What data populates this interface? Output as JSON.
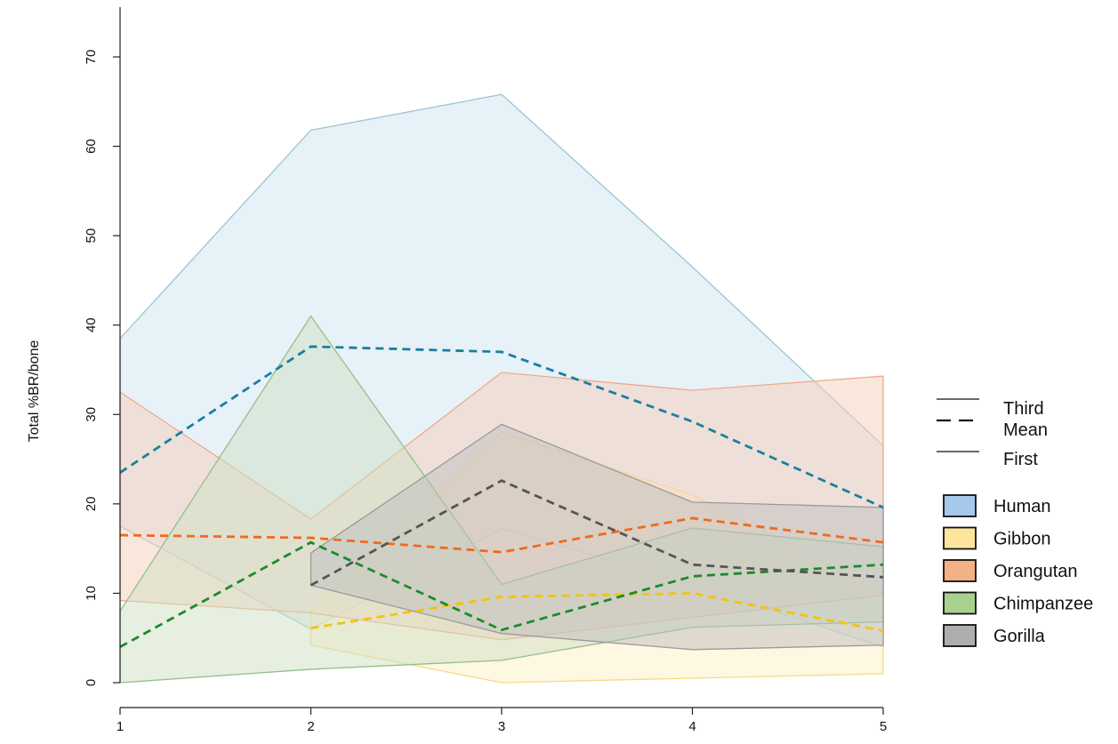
{
  "chart_data": {
    "type": "area",
    "ylabel": "Total %BR/bone",
    "xlabel": "",
    "x": [
      1,
      2,
      3,
      4,
      5
    ],
    "xlim": [
      1,
      5
    ],
    "ylim": [
      0,
      70
    ],
    "yticks": [
      0,
      10,
      20,
      30,
      40,
      50,
      60,
      70
    ],
    "grid": false,
    "legend": {
      "placement": "right",
      "line_entries": [
        {
          "label": "Third",
          "style": "solid"
        },
        {
          "label": "Mean",
          "style": "dashed"
        },
        {
          "label": "First",
          "style": "solid"
        }
      ]
    },
    "series": [
      {
        "name": "Human",
        "swatch": "#a6c8ea",
        "fill": "#cfe3f1",
        "band_stroke": "#9cc5d3",
        "mean_color": "#1a7fa0",
        "third": [
          38.5,
          61.8,
          65.8,
          46.5,
          26.5
        ],
        "mean": [
          23.5,
          37.6,
          37.0,
          29.2,
          19.6
        ],
        "first": [
          17.5,
          6.0,
          17.2,
          11.0,
          4.0
        ]
      },
      {
        "name": "Gibbon",
        "swatch": "#fde69c",
        "fill": "#fdf0c6",
        "band_stroke": "#f5dc86",
        "mean_color": "#f1c40f",
        "third": [
          null,
          8.0,
          28.0,
          21.0,
          10.0
        ],
        "mean": [
          null,
          6.1,
          9.6,
          10.0,
          5.8
        ],
        "first": [
          null,
          4.2,
          0.0,
          0.5,
          1.0
        ]
      },
      {
        "name": "Orangutan",
        "swatch": "#f4b184",
        "fill": "#f6cfb9",
        "band_stroke": "#f0a98a",
        "mean_color": "#f06a1c",
        "third": [
          32.5,
          18.3,
          34.7,
          32.7,
          34.3
        ],
        "mean": [
          16.5,
          16.2,
          14.6,
          18.4,
          15.7
        ],
        "first": [
          9.2,
          7.8,
          4.8,
          7.3,
          9.8
        ]
      },
      {
        "name": "Chimpanzee",
        "swatch": "#a9d18e",
        "fill": "#cfe0c4",
        "band_stroke": "#93c08a",
        "mean_color": "#1d8a2c",
        "third": [
          8.0,
          41.0,
          11.0,
          17.3,
          15.2
        ],
        "mean": [
          4.0,
          15.7,
          5.9,
          11.9,
          13.2
        ],
        "first": [
          0.0,
          1.5,
          2.5,
          6.2,
          6.8
        ]
      },
      {
        "name": "Gorilla",
        "swatch": "#aeaeae",
        "fill": "#bdbdbd",
        "band_stroke": "#9a9a9a",
        "mean_color": "#555555",
        "third": [
          null,
          14.5,
          28.9,
          20.2,
          19.6
        ],
        "mean": [
          null,
          10.9,
          22.6,
          13.2,
          11.8
        ],
        "first": [
          null,
          10.9,
          5.5,
          3.7,
          4.2
        ]
      }
    ]
  }
}
